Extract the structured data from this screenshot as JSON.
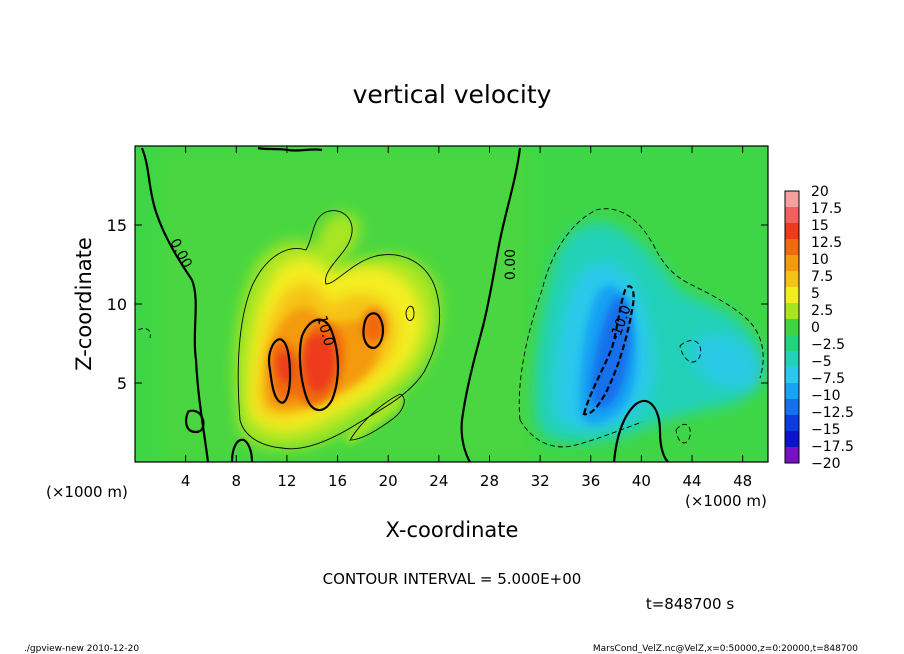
{
  "chart_data": {
    "type": "heatmap",
    "title": "vertical velocity",
    "xlabel": "X-coordinate",
    "ylabel": "Z-coordinate",
    "x_unit_left": "(×1000 m)",
    "x_unit_right": "(×1000 m)",
    "xlim": [
      0,
      50
    ],
    "ylim": [
      0,
      20
    ],
    "x_ticks": [
      4,
      8,
      12,
      16,
      20,
      24,
      28,
      32,
      36,
      40,
      44,
      48
    ],
    "y_ticks": [
      5,
      10,
      15
    ],
    "contour_interval_text": "CONTOUR INTERVAL = 5.000E+00",
    "time_text": "t=848700 s",
    "colorbar": {
      "levels": [
        20,
        17.5,
        15,
        12.5,
        10,
        7.5,
        5,
        2.5,
        0,
        -2.5,
        -5,
        -7.5,
        -10,
        -12.5,
        -15,
        -17.5,
        -20
      ],
      "labels": [
        "20",
        "17.5",
        "15",
        "12.5",
        "10",
        "7.5",
        "5",
        "2.5",
        "0",
        "−2.5",
        "−5",
        "−7.5",
        "−10",
        "−12.5",
        "−15",
        "−17.5",
        "−20"
      ],
      "colors": [
        "#f4a0a0",
        "#f06060",
        "#ee3a1a",
        "#f06a10",
        "#f49a10",
        "#f6c218",
        "#f4ee20",
        "#a8e620",
        "#40d440",
        "#22d47a",
        "#22d2b8",
        "#2ac8ec",
        "#18a2f4",
        "#1470ec",
        "#0c3ce0",
        "#0a14cc",
        "#7a10c4"
      ]
    },
    "contour_labels": [
      {
        "text": "0.00",
        "x": 3.6,
        "y": 13.2,
        "rotate": 62
      },
      {
        "text": "0.00",
        "x": 29.7,
        "y": 12.5,
        "rotate": -90
      },
      {
        "text": "10.0",
        "x": 15.0,
        "y": 8.3,
        "rotate": 75
      },
      {
        "text": "-10.0",
        "x": 38.4,
        "y": 8.8,
        "rotate": -70
      }
    ]
  },
  "footer": {
    "left": "./gpview-new  2010-12-20",
    "right": "MarsCond_VelZ.nc@VelZ,x=0:50000,z=0:20000,t=848700"
  },
  "colors": {
    "background_field": "#3ed646",
    "positive_core": "#ee3a1a",
    "negative_core": "#1470ec"
  }
}
